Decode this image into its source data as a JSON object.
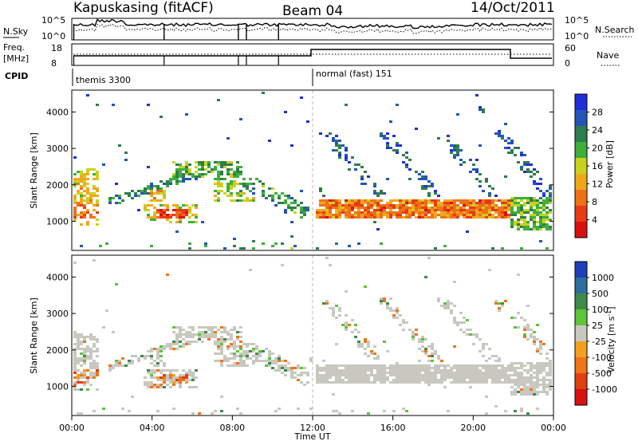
{
  "header": {
    "station": "Kapuskasing (fitACF)",
    "beam": "Beam 04",
    "date": "14/Oct/2011"
  },
  "top_panels": {
    "nsky_label": "N.Sky",
    "nsearch_label": "N.Search",
    "nsky_ticks": [
      "10^5",
      "10^0"
    ],
    "nsearch_ticks": [
      "10^5",
      "10^0"
    ],
    "freq_label": "Freq.",
    "freq_unit": "[MHz]",
    "freq_ticks": [
      "18",
      "8"
    ],
    "nave_label": "Nave",
    "nave_ticks": [
      "60",
      "0"
    ],
    "cpid_label": "CPID",
    "cpid_segments": [
      {
        "name": "themis 3300",
        "start_hr": 0,
        "end_hr": 12
      },
      {
        "name": "normal (fast) 151",
        "start_hr": 12,
        "end_hr": 24
      }
    ]
  },
  "chart_data": [
    {
      "type": "heatmap",
      "name": "power",
      "ylabel": "Slant Range [km]",
      "yticks": [
        1000,
        2000,
        3000,
        4000
      ],
      "ylim": [
        200,
        4600
      ],
      "colorbar_label": "Power [dB]",
      "colorbar_ticks": [
        "4",
        "8",
        "12",
        "16",
        "20",
        "24",
        "28"
      ],
      "colorbar_colors": [
        "#1f2fd8",
        "#2454b8",
        "#2e7d4c",
        "#3fae3a",
        "#c8d21e",
        "#f0a81a",
        "#f07018",
        "#e83a14",
        "#d81010"
      ],
      "xlim_hr": [
        0,
        24
      ]
    },
    {
      "type": "heatmap",
      "name": "velocity",
      "ylabel": "Slant Range [km]",
      "yticks": [
        1000,
        2000,
        3000,
        4000
      ],
      "ylim": [
        200,
        4600
      ],
      "colorbar_label": "Velocity [m s",
      "colorbar_label_sup": "-1",
      "colorbar_label_end": "]",
      "colorbar_ticks": [
        "1000",
        "500",
        "100",
        "25",
        "-25",
        "-100",
        "-500",
        "-1000"
      ],
      "colorbar_colors": [
        "#1f3fb8",
        "#2e6e9a",
        "#3f8a4a",
        "#5ec43a",
        "#c8c8c0",
        "#f2a020",
        "#f07418",
        "#e04010",
        "#d81010"
      ],
      "xlim_hr": [
        0,
        24
      ]
    }
  ],
  "x_axis": {
    "ticks": [
      "00:00",
      "04:00",
      "08:00",
      "12:00",
      "16:00",
      "20:00",
      "00:00"
    ],
    "label": "Time UT"
  }
}
